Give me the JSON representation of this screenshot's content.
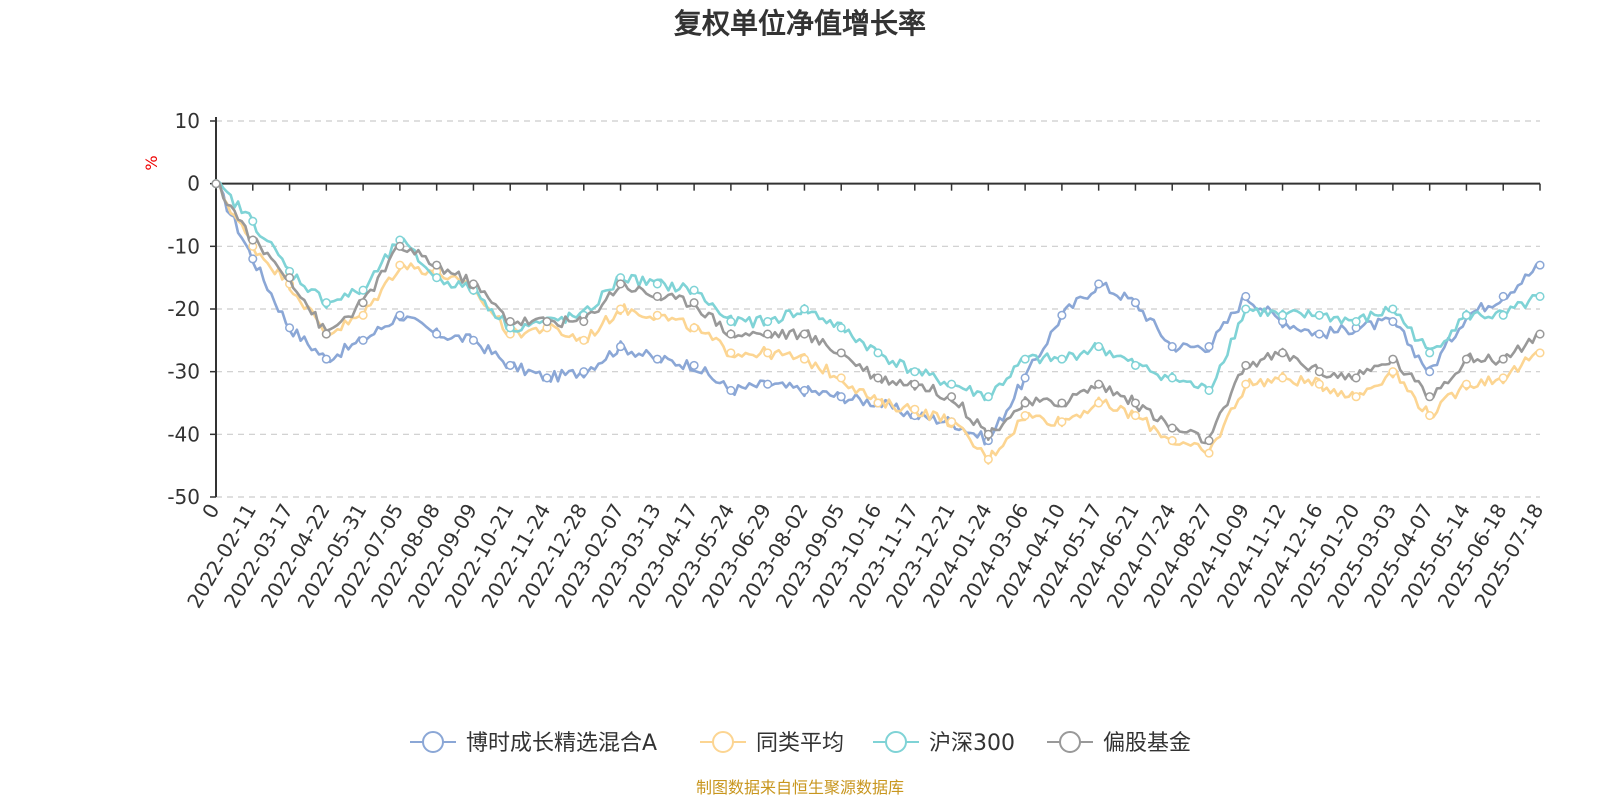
{
  "chart_data": {
    "type": "line",
    "title": "复权单位净值增长率",
    "ylabel": "%",
    "ylim": [
      -50,
      10
    ],
    "yticks": [
      "10",
      "0",
      "-10",
      "-20",
      "-30",
      "-40",
      "-50"
    ],
    "categories": [
      "0",
      "2022-02-11",
      "2022-03-17",
      "2022-04-22",
      "2022-05-31",
      "2022-07-05",
      "2022-08-08",
      "2022-09-09",
      "2022-10-21",
      "2022-11-24",
      "2022-12-28",
      "2023-02-07",
      "2023-03-13",
      "2023-04-17",
      "2023-05-24",
      "2023-06-29",
      "2023-08-02",
      "2023-09-05",
      "2023-10-16",
      "2023-11-17",
      "2023-12-21",
      "2024-01-24",
      "2024-03-06",
      "2024-04-10",
      "2024-05-17",
      "2024-06-21",
      "2024-07-24",
      "2024-08-27",
      "2024-10-09",
      "2024-11-12",
      "2024-12-16",
      "2025-01-20",
      "2025-03-03",
      "2025-04-07",
      "2025-05-14",
      "2025-06-18",
      "2025-07-18"
    ],
    "series": [
      {
        "name": "博时成长精选混合A",
        "color": "#8ba7d6",
        "values": [
          0,
          -12,
          -23,
          -28,
          -25,
          -21,
          -24,
          -25,
          -29,
          -31,
          -30,
          -26,
          -28,
          -29,
          -33,
          -32,
          -33,
          -34,
          -35,
          -37,
          -38,
          -41,
          -31,
          -21,
          -16,
          -19,
          -26,
          -26,
          -18,
          -22,
          -24,
          -23,
          -22,
          -30,
          -21,
          -18,
          -13
        ]
      },
      {
        "name": "同类平均",
        "color": "#fcd592",
        "values": [
          0,
          -10,
          -16,
          -24,
          -21,
          -13,
          -14,
          -17,
          -24,
          -23,
          -25,
          -20,
          -21,
          -23,
          -27,
          -27,
          -28,
          -31,
          -35,
          -36,
          -38,
          -44,
          -37,
          -38,
          -35,
          -37,
          -41,
          -43,
          -32,
          -31,
          -32,
          -34,
          -30,
          -37,
          -32,
          -31,
          -27
        ]
      },
      {
        "name": "沪深300",
        "color": "#7fd3d6",
        "values": [
          0,
          -6,
          -14,
          -19,
          -17,
          -9,
          -15,
          -17,
          -23,
          -22,
          -21,
          -15,
          -16,
          -17,
          -22,
          -22,
          -20,
          -23,
          -27,
          -30,
          -32,
          -34,
          -28,
          -28,
          -26,
          -29,
          -31,
          -33,
          -20,
          -21,
          -21,
          -22,
          -20,
          -27,
          -21,
          -21,
          -18
        ]
      },
      {
        "name": "偏股基金",
        "color": "#999999",
        "values": [
          0,
          -9,
          -15,
          -24,
          -19,
          -10,
          -13,
          -16,
          -22,
          -22,
          -22,
          -16,
          -18,
          -19,
          -24,
          -24,
          -24,
          -27,
          -31,
          -32,
          -34,
          -40,
          -35,
          -35,
          -32,
          -35,
          -39,
          -41,
          -29,
          -27,
          -30,
          -31,
          -28,
          -34,
          -28,
          -28,
          -24
        ]
      }
    ],
    "legend": {
      "position": "bottom",
      "marker": "circle"
    },
    "grid": {
      "horizontal": true,
      "style": "dashed"
    }
  },
  "footer": {
    "source": "制图数据来自恒生聚源数据库"
  }
}
